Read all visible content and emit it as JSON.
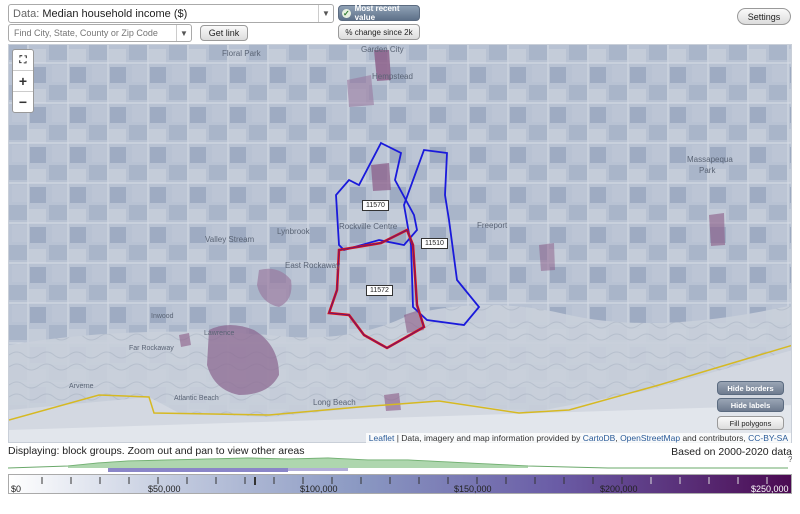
{
  "toolbar": {
    "data_label_prefix": "Data:",
    "data_value": "Median household income ($)",
    "search_placeholder": "Find City, State, County or Zip Code",
    "get_link": "Get link",
    "most_recent": "Most recent value",
    "pct_change": "% change since 2k",
    "settings": "Settings"
  },
  "map": {
    "zoom_in": "+",
    "zoom_out": "−",
    "zip_labels": [
      "11570",
      "11510",
      "11572"
    ],
    "place_labels": [
      "Floral Park",
      "Garden City",
      "Hempstead",
      "Massapequa",
      "Park",
      "Valley Stream",
      "Lynbrook",
      "Rockville Centre",
      "Freeport",
      "East Rockaway",
      "Inwood",
      "Lawrence",
      "Far Rockaway",
      "Atlantic Beach",
      "Long Beach",
      "Arverne"
    ],
    "buttons": {
      "hide_borders": "Hide borders",
      "hide_labels": "Hide labels",
      "fill_polygons": "Fill polygons"
    },
    "attribution": {
      "leaflet": "Leaflet",
      "text": "| Data, imagery and map information provided by",
      "carto": "CartoDB",
      "comma": ",",
      "osm": "OpenStreetMap",
      "rest": "and contributors,",
      "license": "CC-BY-SA"
    }
  },
  "status": {
    "displaying": "Displaying: block groups. Zoom out and pan to view other areas",
    "based_on": "Based on 2000-2020 data",
    "question": "?"
  },
  "legend": {
    "ticks": [
      "$0",
      "$50,000",
      "$100,000",
      "$150,000",
      "$200,000",
      "$250,000"
    ],
    "gradient_start": "#ffffff",
    "gradient_mid": "#8a98c2",
    "gradient_end": "#4b0a52"
  },
  "colors": {
    "selection_blue": "#1a1adb",
    "selection_red": "#e01010",
    "coast_yellow": "#d6b922"
  }
}
